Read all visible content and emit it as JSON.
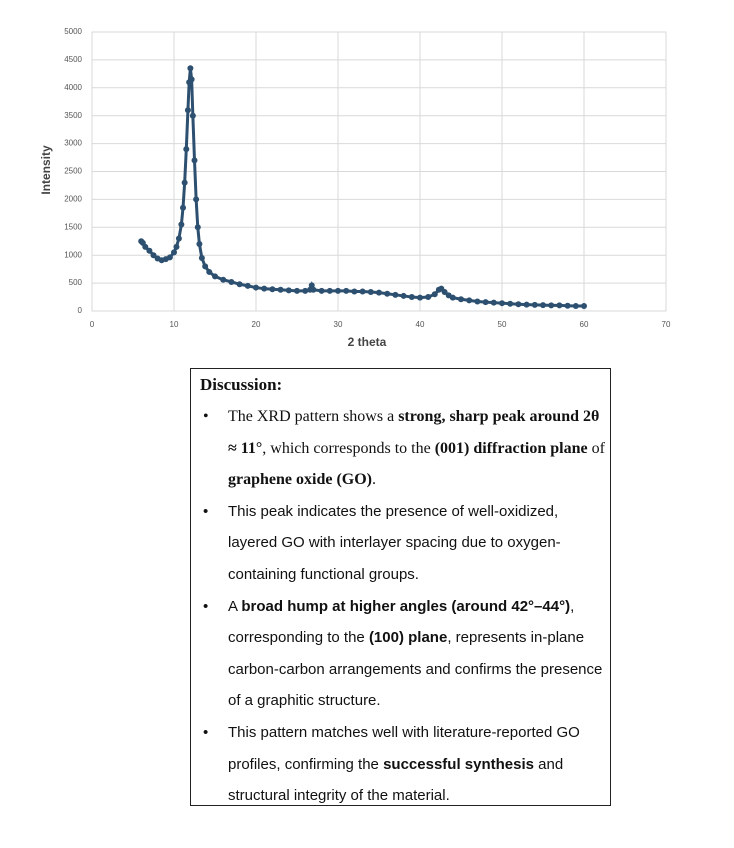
{
  "chart_data": {
    "type": "scatter",
    "x_label": "2 theta",
    "y_label": "Intensity",
    "color": "#2d5070",
    "grid": true,
    "xlim": [
      0,
      70
    ],
    "xticks": [
      0,
      10,
      20,
      30,
      40,
      50,
      60,
      70
    ],
    "ylim": [
      0,
      5000
    ],
    "yticks": [
      0,
      500,
      1000,
      1500,
      2000,
      2500,
      3000,
      3500,
      4000,
      4500,
      5000
    ],
    "x": [
      6,
      6.2,
      6.5,
      7,
      7.5,
      8,
      8.5,
      9,
      9.5,
      10,
      10.3,
      10.6,
      10.9,
      11.1,
      11.3,
      11.5,
      11.7,
      11.85,
      12,
      12.15,
      12.3,
      12.5,
      12.7,
      12.9,
      13.1,
      13.4,
      13.8,
      14.3,
      15,
      16,
      17,
      18,
      19,
      20,
      21,
      22,
      23,
      24,
      25,
      26,
      26.6,
      26.8,
      27,
      28,
      29,
      30,
      31,
      32,
      33,
      34,
      35,
      36,
      37,
      38,
      39,
      40,
      41,
      41.8,
      42.3,
      42.6,
      43,
      43.5,
      44,
      45,
      46,
      47,
      48,
      49,
      50,
      51,
      52,
      53,
      54,
      55,
      56,
      57,
      58,
      59,
      60
    ],
    "values": [
      1250,
      1220,
      1150,
      1080,
      1000,
      940,
      910,
      930,
      960,
      1050,
      1150,
      1300,
      1550,
      1850,
      2300,
      2900,
      3600,
      4100,
      4350,
      4150,
      3500,
      2700,
      2000,
      1500,
      1200,
      950,
      800,
      700,
      620,
      560,
      520,
      480,
      450,
      420,
      400,
      390,
      380,
      370,
      360,
      360,
      380,
      460,
      380,
      360,
      360,
      360,
      360,
      350,
      350,
      340,
      330,
      310,
      290,
      270,
      250,
      240,
      250,
      300,
      380,
      400,
      340,
      280,
      240,
      210,
      190,
      170,
      160,
      150,
      140,
      130,
      120,
      115,
      110,
      105,
      100,
      100,
      95,
      90,
      90
    ]
  },
  "discussion": {
    "title": "Discussion:",
    "items": [
      [
        {
          "text": "The XRD pattern shows a ",
          "bold": false
        },
        {
          "text": "strong, sharp peak around 2θ ≈ 11°",
          "bold": true
        },
        {
          "text": ", which corresponds to the ",
          "bold": false
        },
        {
          "text": "(001) diffraction plane",
          "bold": true
        },
        {
          "text": " of ",
          "bold": false
        },
        {
          "text": "graphene oxide (GO)",
          "bold": true
        },
        {
          "text": ".",
          "bold": false
        }
      ],
      [
        {
          "text": "This peak indicates the presence of well-oxidized, layered GO with interlayer spacing due to oxygen-containing functional groups.",
          "bold": false
        }
      ],
      [
        {
          "text": "A ",
          "bold": false
        },
        {
          "text": "broad hump at higher angles (around 42°–44°)",
          "bold": true
        },
        {
          "text": ", corresponding to the ",
          "bold": false
        },
        {
          "text": "(100) plane",
          "bold": true
        },
        {
          "text": ", represents in-plane carbon-carbon arrangements and confirms the presence of a graphitic structure.",
          "bold": false
        }
      ],
      [
        {
          "text": "This pattern matches well with literature-reported GO profiles, confirming the ",
          "bold": false
        },
        {
          "text": "successful synthesis",
          "bold": true
        },
        {
          "text": " and structural integrity of the material.",
          "bold": false
        }
      ]
    ]
  }
}
